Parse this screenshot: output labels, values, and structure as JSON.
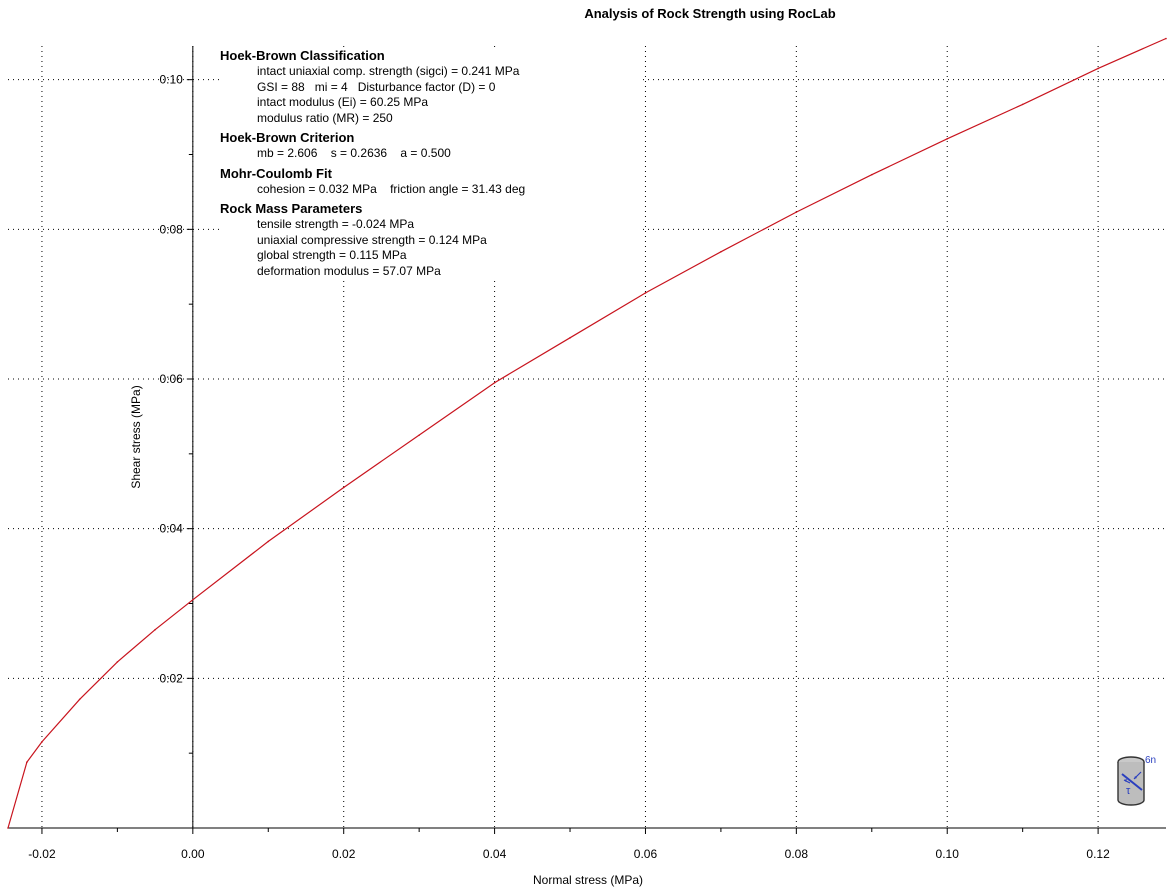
{
  "chart_data": {
    "type": "line",
    "title": "Analysis of Rock Strength using RocLab",
    "xlabel": "Normal stress (MPa)",
    "ylabel": "Shear stress (MPa)",
    "xlim": [
      -0.0245,
      0.129
    ],
    "ylim": [
      0,
      0.1045
    ],
    "x_ticks": [
      -0.02,
      0.0,
      0.02,
      0.04,
      0.06,
      0.08,
      0.1,
      0.12
    ],
    "x_tick_labels": [
      "-0.02",
      "0.00",
      "0.02",
      "0.04",
      "0.06",
      "0.08",
      "0.10",
      "0.12"
    ],
    "y_ticks": [
      0.02,
      0.04,
      0.06,
      0.08,
      0.1
    ],
    "y_tick_labels": [
      "0:02",
      "0:04",
      "0:06",
      "0:08",
      "0:10"
    ],
    "grid": true,
    "series": [
      {
        "color": "#c8141e",
        "x": [
          -0.0245,
          -0.022,
          -0.02,
          -0.015,
          -0.01,
          -0.005,
          0.0,
          0.01,
          0.02,
          0.03,
          0.04,
          0.05,
          0.06,
          0.07,
          0.08,
          0.09,
          0.1,
          0.11,
          0.12,
          0.129
        ],
        "y": [
          0.0,
          0.0088,
          0.0115,
          0.0172,
          0.0222,
          0.0265,
          0.0305,
          0.0383,
          0.0455,
          0.0525,
          0.0595,
          0.0655,
          0.0715,
          0.077,
          0.0823,
          0.0873,
          0.0921,
          0.0967,
          0.1015,
          0.1055
        ]
      }
    ]
  },
  "info": {
    "sections": [
      {
        "heading": "Hoek-Brown Classification",
        "lines": [
          "intact uniaxial comp. strength (sigci) = 0.241 MPa",
          "GSI = 88   mi = 4   Disturbance factor (D) = 0",
          "intact modulus (Ei) = 60.25 MPa",
          "modulus ratio (MR) = 250"
        ]
      },
      {
        "heading": "Hoek-Brown Criterion",
        "lines": [
          "mb = 2.606    s = 0.2636    a = 0.500"
        ]
      },
      {
        "heading": "Mohr-Coulomb Fit",
        "lines": [
          "cohesion = 0.032 MPa    friction angle = 31.43 deg"
        ]
      },
      {
        "heading": "Rock Mass Parameters",
        "lines": [
          "tensile strength = -0.024 MPa",
          "uniaxial compressive strength = 0.124 MPa",
          "global strength = 0.115 MPa",
          "deformation modulus = 57.07 MPa"
        ]
      }
    ]
  },
  "icon": {
    "name": "rock-sample-cylinder-icon",
    "sigma_label": "6n",
    "tau_label": "τ"
  }
}
